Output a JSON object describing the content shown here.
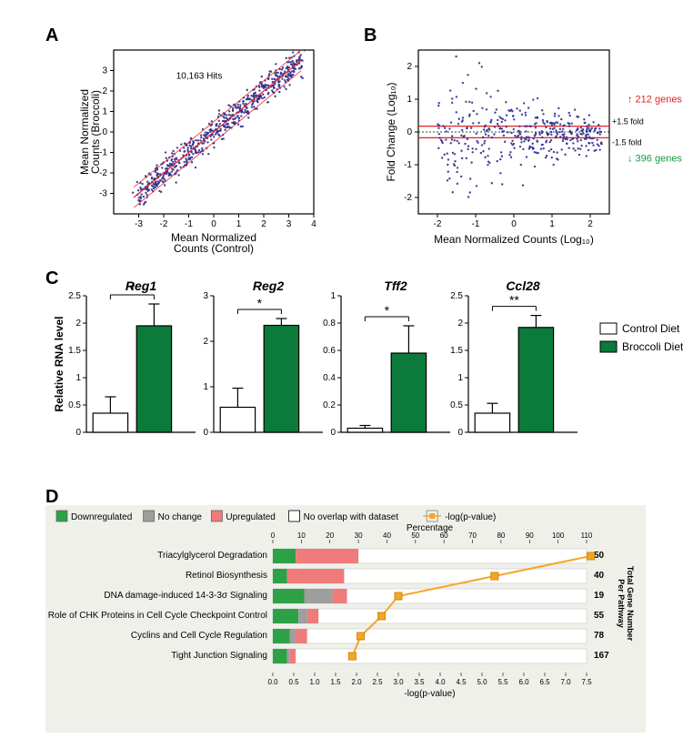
{
  "panelA": {
    "label": "A",
    "type": "scatter",
    "annotation": "10,163 Hits",
    "x_title": "Mean Normalized\nCounts (Control)",
    "y_title": "Mean Normalized\nCounts (Broccoli)",
    "xlim": [
      -4,
      4
    ],
    "ylim": [
      -4,
      4
    ],
    "xticks": [
      -3,
      -2,
      -1,
      0,
      1,
      2,
      3,
      4
    ],
    "yticks": [
      -3,
      -2,
      -1,
      0,
      1,
      2,
      3
    ],
    "point_color": "#2e2e8f",
    "point_radius": 1.2,
    "point_opacity": 0.9,
    "line_color": "#e52222",
    "n_points": 600,
    "scatter_sd": 0.35
  },
  "panelB": {
    "label": "B",
    "type": "scatter",
    "x_title": "Mean Normalized Counts (Log₁₀)",
    "y_title": "Fold Change (Log₁₀)",
    "xlim": [
      -2.5,
      2.5
    ],
    "ylim": [
      -2.5,
      2.5
    ],
    "xticks": [
      -2,
      -1,
      0,
      1,
      2
    ],
    "yticks": [
      -2,
      -1,
      0,
      1,
      2
    ],
    "point_color": "#2e2e8f",
    "point_radius": 1.2,
    "point_opacity": 0.9,
    "fold_line_color": "#e52222",
    "fold_up_label": "+1.5 fold",
    "fold_down_label": "-1.5 fold",
    "up_genes_label": "212 genes",
    "up_color": "#e52222",
    "down_genes_label": "396 genes",
    "down_color": "#1a9641",
    "n_points": 400,
    "scatter_sd": 0.28
  },
  "panelC": {
    "label": "C",
    "y_title": "Relative RNA level",
    "legend": [
      {
        "label": "Control Diet",
        "fill": "#ffffff",
        "stroke": "#000000"
      },
      {
        "label": "Broccoli Diet",
        "fill": "#0b7a3b",
        "stroke": "#000000"
      }
    ],
    "bar_width": 0.55,
    "charts": [
      {
        "gene": "Reg1",
        "ylim": [
          0,
          2.5
        ],
        "ystep": 0.5,
        "control": {
          "mean": 0.35,
          "err": 0.3
        },
        "broccoli": {
          "mean": 1.95,
          "err": 0.4
        },
        "sig": "*"
      },
      {
        "gene": "Reg2",
        "ylim": [
          0,
          3
        ],
        "ystep": 1,
        "control": {
          "mean": 0.55,
          "err": 0.42
        },
        "broccoli": {
          "mean": 2.35,
          "err": 0.15
        },
        "sig": "*"
      },
      {
        "gene": "Tff2",
        "ylim": [
          0,
          1.0
        ],
        "ystep": 0.2,
        "control": {
          "mean": 0.03,
          "err": 0.02
        },
        "broccoli": {
          "mean": 0.58,
          "err": 0.2
        },
        "sig": "*"
      },
      {
        "gene": "Ccl28",
        "ylim": [
          0,
          2.5
        ],
        "ystep": 0.5,
        "control": {
          "mean": 0.35,
          "err": 0.18
        },
        "broccoli": {
          "mean": 1.92,
          "err": 0.22
        },
        "sig": "**"
      }
    ]
  },
  "panelD": {
    "label": "D",
    "bg_color": "#f0f0eb",
    "legend": [
      {
        "label": "Downregulated",
        "fill": "#2da146"
      },
      {
        "label": "No change",
        "fill": "#9e9e9e"
      },
      {
        "label": "Upregulated",
        "fill": "#ef7b7b"
      },
      {
        "label": "No overlap with dataset",
        "fill": "#ffffff",
        "stroke": "#000000"
      }
    ],
    "line_legend": {
      "label": "-log(p-value)",
      "color": "#f4a62a"
    },
    "percent_label": "Percentage",
    "logp_label": "-log(p-value)",
    "right_axis_label": "Total Gene Number\nPer Pathway",
    "percent_ticks": [
      0,
      10,
      20,
      30,
      40,
      50,
      60,
      70,
      80,
      90,
      100,
      110
    ],
    "logp_ticks": [
      0.0,
      0.5,
      1.0,
      1.5,
      2.0,
      2.5,
      3.0,
      3.5,
      4.0,
      4.5,
      5.0,
      5.5,
      6.0,
      6.5,
      7.0,
      7.5
    ],
    "rows": [
      {
        "name": "Triacylglycerol Degradation",
        "down": 8,
        "nochange": 0,
        "up": 22,
        "total_pct": 30,
        "gene_n": 50,
        "logp": 7.6
      },
      {
        "name": "Retinol Biosynthesis",
        "down": 5,
        "nochange": 0,
        "up": 20,
        "total_pct": 25,
        "gene_n": 40,
        "logp": 5.3
      },
      {
        "name": "DNA damage-induced 14-3-3σ Signaling",
        "down": 11,
        "nochange": 10,
        "up": 5,
        "total_pct": 26,
        "gene_n": 19,
        "logp": 3.0
      },
      {
        "name": "Role of CHK Proteins in Cell Cycle Checkpoint Control",
        "down": 9,
        "nochange": 3,
        "up": 4,
        "total_pct": 16,
        "gene_n": 55,
        "logp": 2.6
      },
      {
        "name": "Cyclins and Cell Cycle Regulation",
        "down": 6,
        "nochange": 2,
        "up": 4,
        "total_pct": 12,
        "gene_n": 78,
        "logp": 2.1
      },
      {
        "name": "Tight Junction Signaling",
        "down": 5,
        "nochange": 1,
        "up": 2,
        "total_pct": 8,
        "gene_n": 167,
        "logp": 1.9
      }
    ],
    "colors": {
      "down": "#2da146",
      "nochange": "#9e9e9e",
      "up": "#ef7b7b",
      "blank": "#ffffff",
      "line": "#f4a62a"
    }
  }
}
